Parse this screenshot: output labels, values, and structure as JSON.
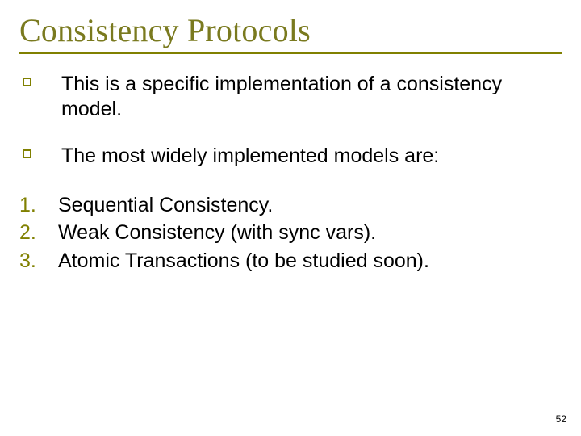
{
  "colors": {
    "title_color": "#7a7a1f",
    "rule_color": "#808000",
    "bullet_border": "#808000",
    "number_color": "#808000",
    "text_color": "#000000",
    "background": "#ffffff"
  },
  "typography": {
    "title_font": "Times New Roman",
    "title_size_pt": 40,
    "body_font": "Verdana",
    "body_size_pt": 25
  },
  "title": "Consistency Protocols",
  "bullets": [
    "This is a specific implementation of a consistency model.",
    "The most widely implemented models are:"
  ],
  "numbered": [
    {
      "n": "1.",
      "text": "Sequential Consistency."
    },
    {
      "n": "2.",
      "text": "Weak Consistency (with sync vars)."
    },
    {
      "n": "3.",
      "text": "Atomic Transactions (to be studied soon)."
    }
  ],
  "page_number": "52"
}
